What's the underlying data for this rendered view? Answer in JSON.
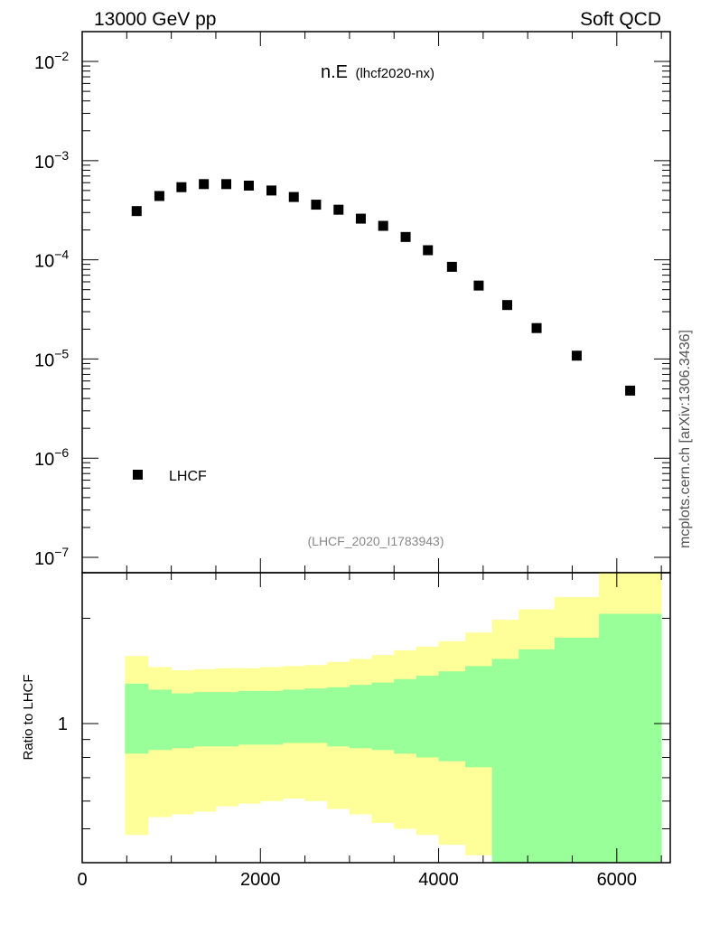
{
  "header": {
    "left": "13000 GeV pp",
    "right": "Soft QCD"
  },
  "side_label": "mcplots.cern.ch [arXiv:1306.3436]",
  "colors": {
    "band_outer": "#ffff99",
    "band_inner": "#99ff99",
    "markers": "#000000",
    "ref_id_text": "#888888"
  },
  "chart_data": [
    {
      "type": "scatter",
      "title": "n.E",
      "subtitle": "(lhcf2020-nx)",
      "ref_id": "(LHCF_2020_I1783943)",
      "y_scale": "log",
      "xlim": [
        0,
        6600
      ],
      "ylim": [
        7e-08,
        0.02
      ],
      "y_ticks": [
        {
          "base": "10",
          "exp": "−2",
          "value": 0.01
        },
        {
          "base": "10",
          "exp": "−3",
          "value": 0.001
        },
        {
          "base": "10",
          "exp": "−4",
          "value": 0.0001
        },
        {
          "base": "10",
          "exp": "−5",
          "value": 1e-05
        },
        {
          "base": "10",
          "exp": "−6",
          "value": 1e-06
        },
        {
          "base": "10",
          "exp": "−7",
          "value": 1e-07
        }
      ],
      "legend": {
        "position": "bottom-left"
      },
      "series": [
        {
          "name": "LHCF",
          "x": [
            611,
            866,
            1114,
            1365,
            1617,
            1870,
            2124,
            2375,
            2625,
            2877,
            3127,
            3378,
            3630,
            3880,
            4150,
            4450,
            4770,
            5100,
            5550,
            6150
          ],
          "y": [
            0.00031,
            0.00044,
            0.00054,
            0.00058,
            0.00058,
            0.00056,
            0.0005,
            0.00043,
            0.00036,
            0.00032,
            0.00026,
            0.00022,
            0.00017,
            0.000125,
            8.5e-05,
            5.5e-05,
            3.5e-05,
            2.05e-05,
            1.08e-05,
            4.8e-06
          ]
        }
      ]
    },
    {
      "type": "area",
      "ylabel": "Ratio to LHCF",
      "xlim": [
        0,
        6600
      ],
      "ylim": [
        0.4,
        2.7
      ],
      "x_ticks": [
        0,
        2000,
        4000,
        6000
      ],
      "x_tick_labels": [
        "0",
        "2000",
        "4000",
        "6000"
      ],
      "y_ticks": [
        1
      ],
      "y_tick_labels": [
        "1"
      ],
      "bins": [
        [
          480,
          740,
          1000,
          1250,
          1500,
          1750,
          2000,
          2250,
          2500,
          2750,
          3000,
          3250,
          3500,
          3750,
          4000,
          4300,
          4600,
          4900,
          5300,
          5800,
          6500
        ]
      ],
      "series": [
        {
          "name": "outer band",
          "lower": [
            0.48,
            0.54,
            0.55,
            0.56,
            0.58,
            0.59,
            0.6,
            0.61,
            0.6,
            0.57,
            0.55,
            0.52,
            0.5,
            0.48,
            0.45,
            0.42,
            0.4,
            0.4,
            0.4,
            0.4
          ],
          "upper": [
            1.56,
            1.45,
            1.42,
            1.43,
            1.44,
            1.44,
            1.45,
            1.46,
            1.47,
            1.5,
            1.53,
            1.57,
            1.62,
            1.66,
            1.72,
            1.82,
            1.98,
            2.12,
            2.3,
            2.7
          ]
        },
        {
          "name": "inner band",
          "lower": [
            0.82,
            0.84,
            0.85,
            0.86,
            0.86,
            0.87,
            0.87,
            0.88,
            0.88,
            0.86,
            0.85,
            0.84,
            0.82,
            0.8,
            0.78,
            0.75,
            0.4,
            0.4,
            0.4,
            0.4
          ],
          "upper": [
            1.3,
            1.25,
            1.22,
            1.23,
            1.23,
            1.24,
            1.24,
            1.25,
            1.26,
            1.27,
            1.29,
            1.31,
            1.34,
            1.37,
            1.41,
            1.46,
            1.53,
            1.63,
            1.76,
            2.06
          ]
        }
      ]
    }
  ]
}
